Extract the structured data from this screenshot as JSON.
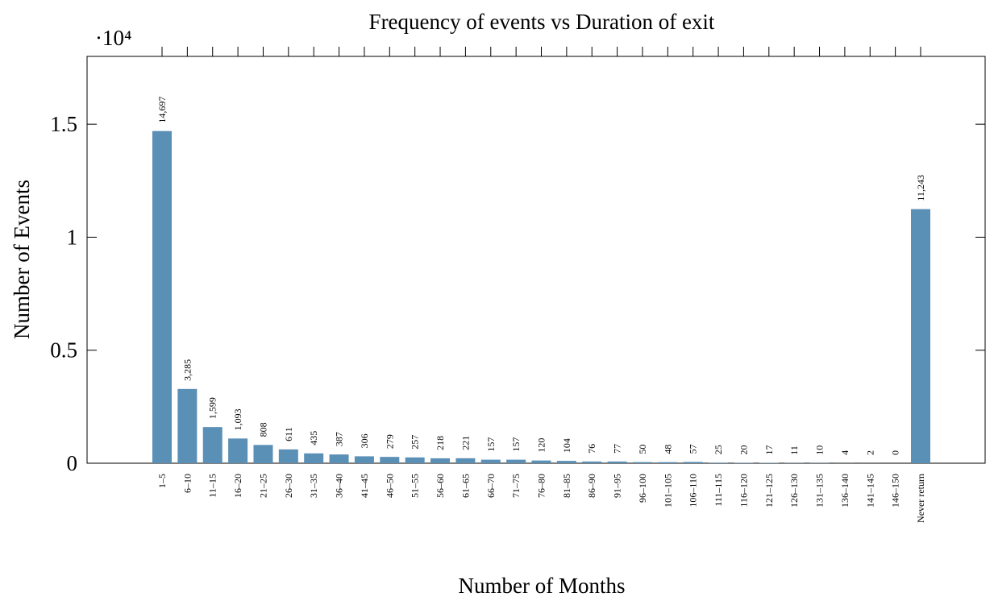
{
  "chart_data": {
    "type": "bar",
    "title": "Frequency of events vs Duration of exit",
    "xlabel": "Number of Months",
    "ylabel": "Number of Events",
    "y_scale_label": "·10⁴",
    "categories": [
      "1–5",
      "6–10",
      "11–15",
      "16–20",
      "21–25",
      "26–30",
      "31–35",
      "36–40",
      "41–45",
      "46–50",
      "51–55",
      "56–60",
      "61–65",
      "66–70",
      "71–75",
      "76–80",
      "81–85",
      "86–90",
      "91–95",
      "96–100",
      "101–105",
      "106–110",
      "111–115",
      "116–120",
      "121–125",
      "126–130",
      "131–135",
      "136–140",
      "141–145",
      "146–150",
      "Never return"
    ],
    "values": [
      14697,
      3285,
      1599,
      1093,
      808,
      611,
      435,
      387,
      306,
      279,
      257,
      218,
      221,
      157,
      157,
      120,
      104,
      76,
      77,
      50,
      48,
      57,
      25,
      20,
      17,
      11,
      10,
      4,
      2,
      0,
      11243
    ],
    "value_labels": [
      "14,697",
      "3,285",
      "1,599",
      "1,093",
      "808",
      "611",
      "435",
      "387",
      "306",
      "279",
      "257",
      "218",
      "221",
      "157",
      "157",
      "120",
      "104",
      "76",
      "77",
      "50",
      "48",
      "57",
      "25",
      "20",
      "17",
      "11",
      "10",
      "4",
      "2",
      "0",
      "11,243"
    ],
    "color": "#5a8fb6",
    "ylim": [
      0,
      18000
    ],
    "yticks": [
      {
        "value": 0,
        "label": "0"
      },
      {
        "value": 5000,
        "label": "0.5"
      },
      {
        "value": 10000,
        "label": "1"
      },
      {
        "value": 15000,
        "label": "1.5"
      }
    ],
    "grid": false
  }
}
